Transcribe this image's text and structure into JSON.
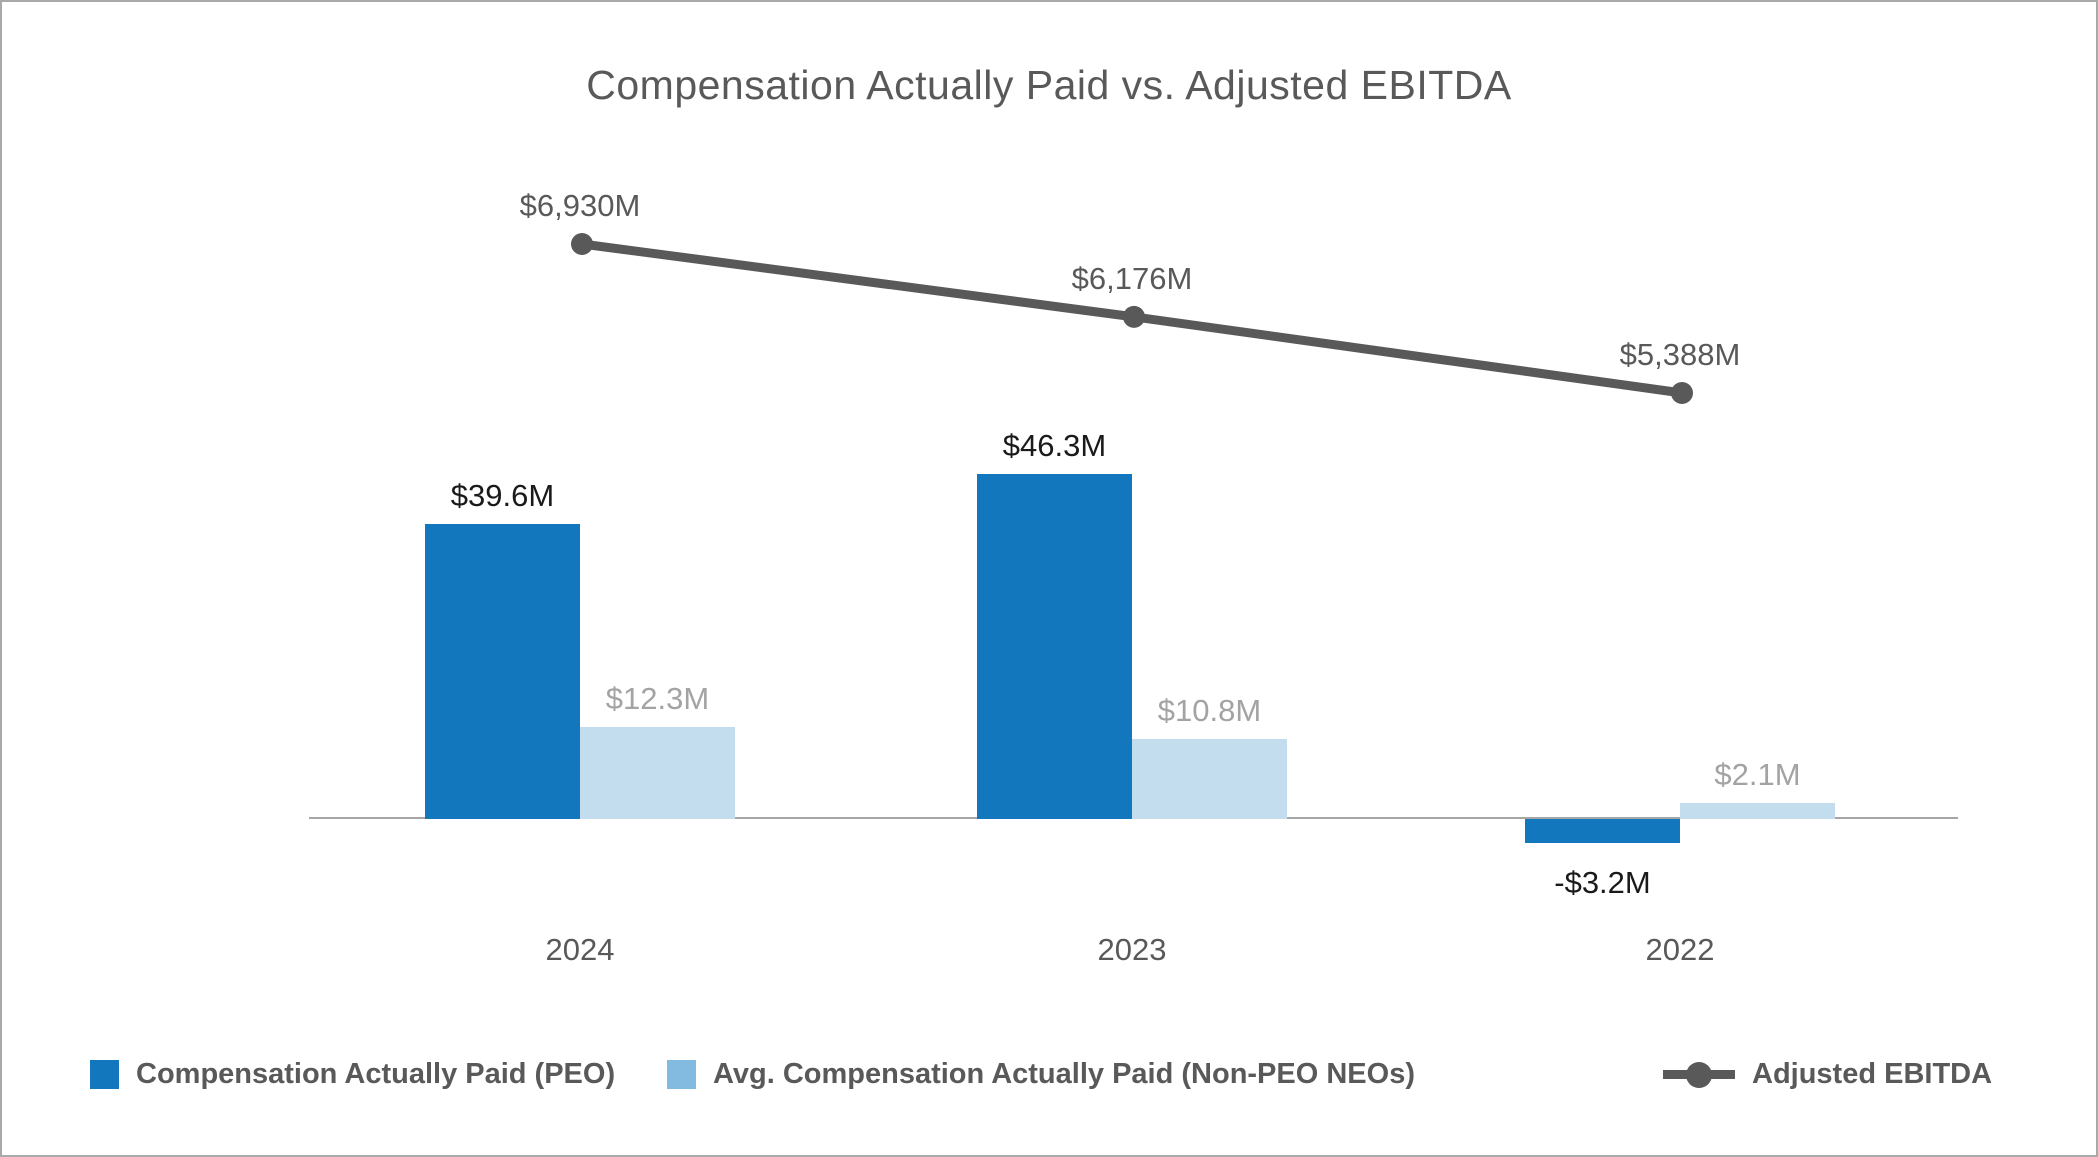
{
  "chart_data": {
    "type": "combo-bar-line",
    "title": "Compensation Actually Paid vs. Adjusted EBITDA",
    "categories": [
      "2024",
      "2023",
      "2022"
    ],
    "series": [
      {
        "name": "Compensation Actually Paid (PEO)",
        "type": "bar",
        "unit": "$M",
        "values": [
          39.6,
          46.3,
          -3.2
        ],
        "labels": [
          "$39.6M",
          "$46.3M",
          "-$3.2M"
        ]
      },
      {
        "name": "Avg. Compensation Actually Paid (Non-PEO NEOs)",
        "type": "bar",
        "unit": "$M",
        "values": [
          12.3,
          10.8,
          2.1
        ],
        "labels": [
          "$12.3M",
          "$10.8M",
          "$2.1M"
        ]
      },
      {
        "name": "Adjusted EBITDA",
        "type": "line",
        "unit": "$M",
        "values": [
          6930,
          6176,
          5388
        ],
        "labels": [
          "$6,930M",
          "$6,176M",
          "$5,388M"
        ]
      }
    ],
    "legend_position": "bottom",
    "gridlines": false,
    "y_axis_visible": false
  },
  "colors": {
    "peo_bar": "#1277bd",
    "neo_bar": "#c3dcee",
    "neo_legend_swatch": "#83badf",
    "ebitda_line": "#595959",
    "title_text": "#595959",
    "peo_label_text": "#1a1a1a",
    "neo_label_text": "#a3a3a3",
    "ebitda_label_text": "#595959",
    "year_label_text": "#595959",
    "legend_text": "#595959",
    "axis_line": "#a6a6a6"
  },
  "legend": {
    "items": [
      {
        "label": "Compensation Actually Paid (PEO)",
        "swatch": "square"
      },
      {
        "label": "Avg. Compensation Actually Paid (Non-PEO NEOs)",
        "swatch": "square"
      },
      {
        "label": "Adjusted EBITDA",
        "swatch": "line-dot"
      }
    ]
  }
}
